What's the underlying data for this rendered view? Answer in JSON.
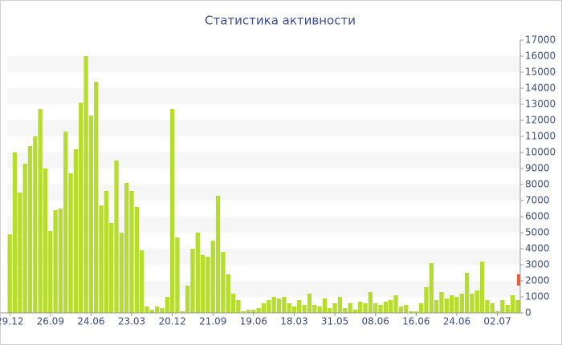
{
  "chart_data": {
    "type": "bar",
    "title": "Статистика активности",
    "categories": [
      "29.12",
      null,
      null,
      null,
      null,
      null,
      null,
      null,
      "26.09",
      null,
      null,
      null,
      null,
      null,
      null,
      null,
      "24.06",
      null,
      null,
      null,
      null,
      null,
      null,
      null,
      "23.03",
      null,
      null,
      null,
      null,
      null,
      null,
      null,
      "20.12",
      null,
      null,
      null,
      null,
      null,
      null,
      null,
      "21.09",
      null,
      null,
      null,
      null,
      null,
      null,
      null,
      "19.06",
      null,
      null,
      null,
      null,
      null,
      null,
      null,
      "18.03",
      null,
      null,
      null,
      null,
      null,
      null,
      null,
      "31.05",
      null,
      null,
      null,
      null,
      null,
      null,
      null,
      "08.06",
      null,
      null,
      null,
      null,
      null,
      null,
      null,
      "16.06",
      null,
      null,
      null,
      null,
      null,
      null,
      null,
      "24.06",
      null,
      null,
      null,
      null,
      null,
      null,
      null,
      "02.07",
      null,
      null,
      null,
      null
    ],
    "values": [
      4900,
      10000,
      7500,
      9300,
      10400,
      11000,
      12700,
      9000,
      5100,
      6400,
      6500,
      11300,
      8700,
      10200,
      13100,
      16000,
      12300,
      14400,
      6700,
      7600,
      5600,
      9500,
      5000,
      8100,
      7600,
      6600,
      3900,
      400,
      200,
      400,
      300,
      1000,
      12700,
      4700,
      100,
      1700,
      4000,
      5000,
      3600,
      3500,
      4500,
      7300,
      3800,
      2400,
      1200,
      800,
      100,
      200,
      200,
      300,
      600,
      800,
      1000,
      900,
      1000,
      600,
      400,
      800,
      500,
      1200,
      500,
      400,
      900,
      300,
      600,
      1000,
      300,
      600,
      200,
      700,
      600,
      1300,
      600,
      500,
      700,
      800,
      1100,
      400,
      500,
      100,
      100,
      600,
      1600,
      3100,
      800,
      1300,
      900,
      1100,
      1000,
      1200,
      2500,
      1200,
      1400,
      3200,
      800,
      600,
      100,
      800,
      500,
      1100,
      800
    ],
    "color": "#b5dc2e",
    "range_marker": {
      "values": [
        1700,
        2400
      ],
      "color": "#e8603c"
    },
    "ylim": [
      0,
      17000
    ],
    "yticks": [
      0,
      1000,
      2000,
      3000,
      4000,
      5000,
      6000,
      7000,
      8000,
      9000,
      10000,
      11000,
      12000,
      13000,
      14000,
      15000,
      16000,
      17000
    ],
    "grid": true
  }
}
